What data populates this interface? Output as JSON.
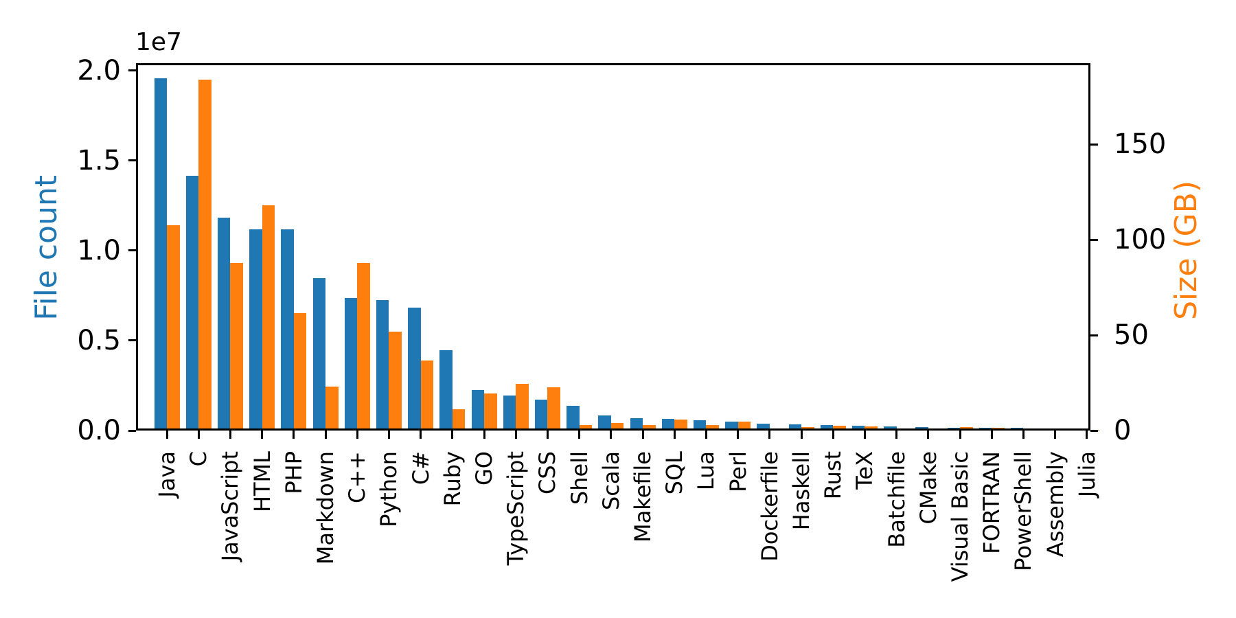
{
  "figure": {
    "background": "#ffffff",
    "frame_color": "#000000"
  },
  "axes": {
    "left": {
      "label": "File count",
      "color": "#1f77b4",
      "offset_text": "1e7",
      "tick_labels": [
        "0.0",
        "0.5",
        "1.0",
        "1.5",
        "2.0"
      ],
      "tick_values": [
        0,
        5000000,
        10000000,
        15000000,
        20000000
      ],
      "max": 20400000
    },
    "right": {
      "label": "Size (GB)",
      "color": "#ff7f0e",
      "tick_labels": [
        "0",
        "50",
        "100",
        "150"
      ],
      "tick_values": [
        0,
        50,
        100,
        150
      ],
      "max": 192.5
    }
  },
  "chart_data": {
    "type": "bar",
    "title": "",
    "xlabel": "",
    "ylabel_left": "File count",
    "ylabel_right": "Size (GB)",
    "ylim_left": [
      0,
      20400000
    ],
    "ylim_right": [
      0,
      192.5
    ],
    "left_axis_scale_note": "1e7",
    "grid": false,
    "legend": "none",
    "categories": [
      "Java",
      "C",
      "JavaScript",
      "HTML",
      "PHP",
      "Markdown",
      "C++",
      "Python",
      "C#",
      "Ruby",
      "GO",
      "TypeScript",
      "CSS",
      "Shell",
      "Scala",
      "Makefile",
      "SQL",
      "Lua",
      "Perl",
      "Dockerfile",
      "Haskell",
      "Rust",
      "TeX",
      "Batchfile",
      "CMake",
      "Visual Basic",
      "FORTRAN",
      "PowerShell",
      "Assembly",
      "Julia"
    ],
    "series": [
      {
        "name": "File count",
        "axis": "left",
        "color": "#1f77b4",
        "values": [
          19550000,
          14140000,
          11840000,
          11180000,
          11180000,
          8460000,
          7380000,
          7230000,
          6810000,
          4470000,
          2270000,
          1940000,
          1730000,
          1390000,
          836000,
          679000,
          657000,
          579000,
          498000,
          367000,
          341000,
          322000,
          251000,
          237000,
          175000,
          156000,
          142000,
          137000,
          83000,
          58000
        ]
      },
      {
        "name": "Size (GB)",
        "axis": "right",
        "color": "#ff7f0e",
        "values": [
          107.7,
          183.8,
          87.8,
          118.1,
          61.4,
          23.1,
          87.7,
          52.0,
          36.8,
          11.0,
          19.3,
          24.6,
          22.7,
          3.0,
          3.9,
          2.9,
          5.7,
          2.8,
          4.7,
          0.7,
          1.9,
          2.7,
          2.2,
          0.7,
          0.5,
          1.9,
          1.6,
          0.7,
          0.8,
          0.3
        ]
      }
    ]
  }
}
